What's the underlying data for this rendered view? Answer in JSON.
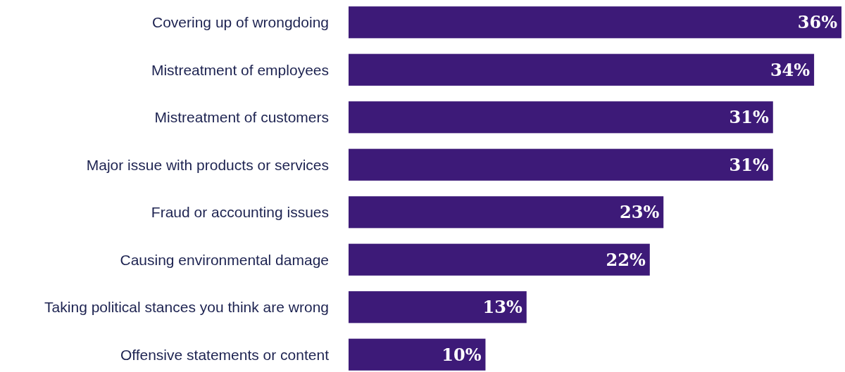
{
  "chart_data": {
    "type": "bar",
    "orientation": "horizontal",
    "categories": [
      "Covering up of wrongdoing",
      "Mistreatment of employees",
      "Mistreatment of customers",
      "Major issue with products or services",
      "Fraud or accounting issues",
      "Causing environmental damage",
      "Taking political stances you think are wrong",
      "Offensive statements or content"
    ],
    "values": [
      36,
      34,
      31,
      31,
      23,
      22,
      13,
      10
    ],
    "value_labels": [
      "36%",
      "34%",
      "31%",
      "31%",
      "23%",
      "22%",
      "13%",
      "10%"
    ],
    "color": "#3d1a78"
  }
}
